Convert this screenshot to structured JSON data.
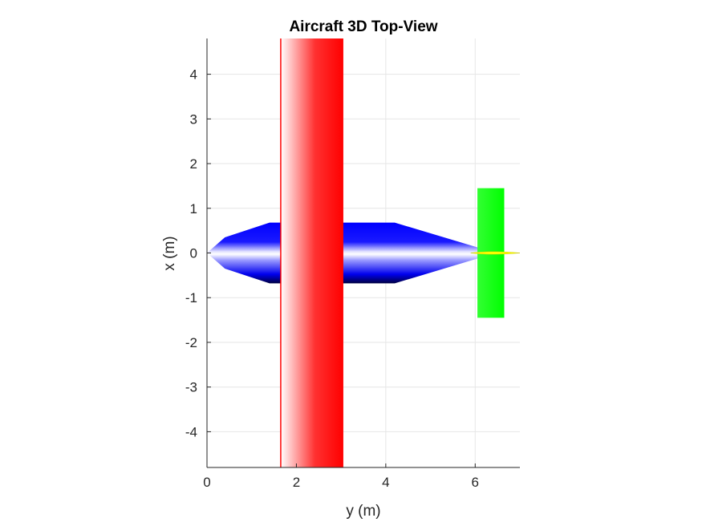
{
  "chart_data": {
    "type": "3d-surface-top-view",
    "title": "Aircraft 3D Top-View",
    "xlabel": "y (m)",
    "ylabel": "x (m)",
    "xlim": [
      0,
      7
    ],
    "ylim": [
      -4.8,
      4.8
    ],
    "xticks": [
      0,
      2,
      4,
      6
    ],
    "yticks": [
      -4,
      -3,
      -2,
      -1,
      0,
      1,
      2,
      3,
      4
    ],
    "grid": true,
    "components": [
      {
        "name": "fuselage",
        "color": "#0000ff",
        "outline": [
          [
            0,
            0
          ],
          [
            0.4,
            0.35
          ],
          [
            1.4,
            0.68
          ],
          [
            4.2,
            0.68
          ],
          [
            6.4,
            0.02
          ],
          [
            6.4,
            -0.02
          ],
          [
            4.2,
            -0.68
          ],
          [
            1.4,
            -0.68
          ],
          [
            0.4,
            -0.35
          ]
        ]
      },
      {
        "name": "wing",
        "color": "#ff0000",
        "y_range": [
          1.65,
          3.05
        ],
        "x_range": [
          -4.8,
          4.8
        ]
      },
      {
        "name": "horizontal-tail",
        "color": "#00ff00",
        "y_range": [
          6.05,
          6.65
        ],
        "x_range": [
          -1.45,
          1.45
        ]
      },
      {
        "name": "vertical-tail",
        "color": "#ffff00",
        "y_range": [
          5.9,
          7.0
        ],
        "x_range": [
          -0.03,
          0.03
        ]
      }
    ]
  }
}
